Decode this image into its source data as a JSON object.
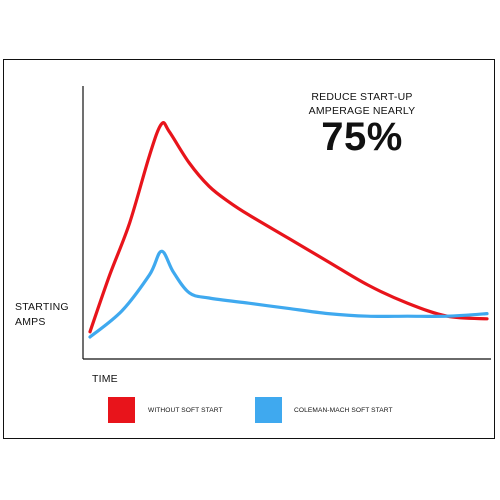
{
  "annotation": {
    "line1": "REDUCE START-UP",
    "line2": "AMPERAGE NEARLY",
    "highlight": "75%"
  },
  "chart_data": {
    "type": "line",
    "xlabel": "TIME",
    "ylabel_lines": [
      "STARTING",
      "AMPS"
    ],
    "x_ticks": "none",
    "y_ticks": "none",
    "grid": false,
    "legend_position": "bottom",
    "series": [
      {
        "name": "WITHOUT SOFT START",
        "color": "#e8141b",
        "points": [
          [
            0,
            20
          ],
          [
            5,
            42
          ],
          [
            10,
            62
          ],
          [
            15,
            88
          ],
          [
            18,
            100
          ],
          [
            20,
            97
          ],
          [
            25,
            85
          ],
          [
            30,
            76
          ],
          [
            35,
            70
          ],
          [
            40,
            65
          ],
          [
            50,
            56
          ],
          [
            60,
            47
          ],
          [
            70,
            38
          ],
          [
            80,
            31
          ],
          [
            90,
            26
          ],
          [
            100,
            25
          ]
        ]
      },
      {
        "name": "COLEMAN-MACH SOFT START",
        "color": "#3fa9ef",
        "points": [
          [
            0,
            18
          ],
          [
            8,
            28
          ],
          [
            15,
            42
          ],
          [
            18,
            51
          ],
          [
            21,
            43
          ],
          [
            25,
            35
          ],
          [
            30,
            33
          ],
          [
            40,
            31
          ],
          [
            50,
            29
          ],
          [
            60,
            27
          ],
          [
            70,
            26
          ],
          [
            80,
            26
          ],
          [
            90,
            26
          ],
          [
            100,
            27
          ]
        ]
      }
    ]
  },
  "legend": {
    "items": [
      {
        "label": "WITHOUT SOFT START",
        "color": "#e8141b"
      },
      {
        "label": "COLEMAN-MACH SOFT START",
        "color": "#3fa9ef"
      }
    ]
  }
}
